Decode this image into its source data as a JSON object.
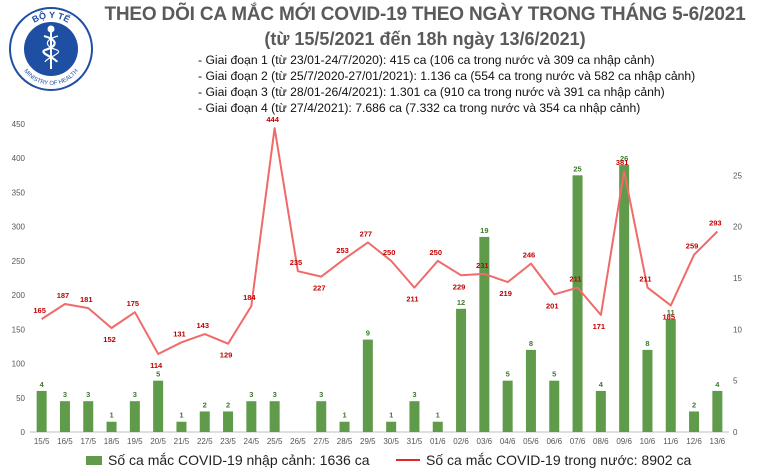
{
  "logo": {
    "top_text": "BỘ Y TẾ",
    "bottom_text": "MINISTRY OF HEALTH",
    "emblem": "caduceus-icon",
    "color": "#1f4fa3"
  },
  "title": {
    "line1": "THEO DÕI CA MẮC MỚI COVID-19 THEO NGÀY TRONG THÁNG 5-6/2021",
    "line2": "(từ 15/5/2021 đến 18h ngày 13/6/2021)"
  },
  "phases": [
    "- Giai đoạn 1 (từ 23/01-24/7/2020): 415 ca (106 ca trong nước và 309 ca nhập cảnh)",
    "- Giai đoạn 2 (từ 25/7/2020-27/01/2021): 1.136 ca (554 ca trong nước và 582 ca nhập cảnh)",
    "- Giai đoạn 3 (từ 28/01-26/4/2021): 1.301 ca (910 ca trong nước và 391 ca nhập cảnh)",
    "- Giai đoạn 4 (từ 27/4/2021): 7.686 ca (7.332 ca trong nước và 354 ca nhập cảnh)"
  ],
  "legend": {
    "bar_label": "Số ca mắc COVID-19 nhập cảnh: 1636 ca",
    "line_label": "Số ca mắc COVID-19 trong nước: 8902 ca"
  },
  "chart_data": {
    "type": "bar+line",
    "categories": [
      "15/5",
      "16/5",
      "17/5",
      "18/5",
      "19/5",
      "20/5",
      "21/5",
      "22/5",
      "23/5",
      "24/5",
      "25/5",
      "26/5",
      "27/5",
      "28/5",
      "29/5",
      "30/5",
      "31/5",
      "01/6",
      "02/6",
      "03/6",
      "04/6",
      "05/6",
      "06/6",
      "07/6",
      "08/6",
      "09/6",
      "10/6",
      "11/6",
      "12/6",
      "13/6"
    ],
    "bar_series": {
      "name": "Số ca mắc COVID-19 nhập cảnh: 1636 ca",
      "axis": "right",
      "values": [
        4,
        3,
        3,
        1,
        3,
        5,
        1,
        2,
        2,
        3,
        3,
        null,
        3,
        1,
        9,
        1,
        3,
        1,
        12,
        19,
        5,
        8,
        5,
        25,
        4,
        26,
        8,
        11,
        2,
        4
      ],
      "color": "#5f9b4a"
    },
    "line_series": {
      "name": "Số ca mắc COVID-19 trong nước: 8902 ca",
      "axis": "left",
      "values": [
        165,
        187,
        181,
        152,
        175,
        114,
        131,
        143,
        129,
        184,
        444,
        235,
        227,
        253,
        277,
        250,
        211,
        250,
        229,
        231,
        219,
        246,
        201,
        211,
        171,
        381,
        211,
        185,
        259,
        293
      ],
      "labels": [
        "165",
        "187",
        "181",
        "152",
        "175",
        "114",
        "131",
        "143",
        "129",
        "184",
        "444",
        "235",
        "227",
        "253",
        "277",
        "250",
        "211",
        "250",
        "229",
        "231",
        "219",
        "246",
        "201",
        "211",
        "171",
        "381",
        "211",
        "185",
        "259",
        "293"
      ],
      "color": "#f06a6a",
      "label_color": "#c00000"
    },
    "left_axis": {
      "ticks": [
        0,
        50,
        100,
        150,
        200,
        250,
        300,
        350,
        400,
        450
      ],
      "range": [
        0,
        450
      ]
    },
    "right_axis": {
      "ticks": [
        0,
        5,
        10,
        15,
        20,
        25
      ],
      "range": [
        0,
        30
      ]
    },
    "grid": false,
    "legend_position": "bottom"
  }
}
